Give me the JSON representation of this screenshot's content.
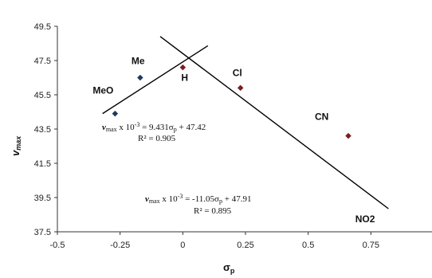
{
  "chart_data": {
    "type": "scatter",
    "title": "",
    "xlabel": "σp",
    "ylabel": "vmax",
    "xlim": [
      -0.5,
      1.0
    ],
    "ylim": [
      37.5,
      49.5
    ],
    "xticks": [
      -0.5,
      -0.25,
      0,
      0.25,
      0.5,
      0.75
    ],
    "xtick_labels": [
      "-0.5",
      "-0.25",
      "0",
      "0.25",
      "0.5",
      "0.75"
    ],
    "yticks": [
      37.5,
      39.5,
      41.5,
      43.5,
      45.5,
      47.5,
      49.5
    ],
    "ytick_labels": [
      "37.5",
      "39.5",
      "41.5",
      "43.5",
      "45.5",
      "47.5",
      "49.5"
    ],
    "grid": false,
    "points": [
      {
        "label": "MeO",
        "x": -0.27,
        "y": 44.4,
        "color": "#1f3a5f"
      },
      {
        "label": "Me",
        "x": -0.17,
        "y": 46.5,
        "color": "#1f3a5f"
      },
      {
        "label": "H",
        "x": 0.0,
        "y": 47.1,
        "color": "#7a1f1f"
      },
      {
        "label": "Cl",
        "x": 0.23,
        "y": 45.9,
        "color": "#7a1f1f"
      },
      {
        "label": "CN",
        "x": 0.66,
        "y": 43.1,
        "color": "#7a1f1f"
      },
      {
        "label": "NO2",
        "x": 0.78,
        "y": null,
        "color": "#7a1f1f"
      }
    ],
    "trendlines": [
      {
        "slope": 9.431,
        "intercept": 47.42,
        "x_range": [
          -0.32,
          0.1
        ],
        "equation": "vmax x 10-3 = 9.431σp + 47.42",
        "r2": "R² = 0.905"
      },
      {
        "slope": -11.05,
        "intercept": 47.91,
        "x_range": [
          -0.09,
          0.82
        ],
        "equation": "vmax x 10-3 = -11.05σp + 47.91",
        "r2": "R² = 0.895"
      }
    ]
  },
  "annotations": {
    "eq1": {
      "v": "v",
      "max": "max",
      "times": " x 10",
      "exp": "-3",
      "body": " = 9.431σ",
      "sub": "p",
      "tail": " + 47.42",
      "r2": "R² = 0.905"
    },
    "eq2": {
      "v": "v",
      "max": "max",
      "times": " x 10",
      "exp": "-3",
      "body": " = -11.05σ",
      "sub": "p",
      "tail": " + 47.91",
      "r2": "R² = 0.895"
    },
    "y_axis": {
      "main": "v",
      "sub": "max"
    },
    "x_axis": {
      "main": "σ",
      "sub": "p"
    }
  }
}
